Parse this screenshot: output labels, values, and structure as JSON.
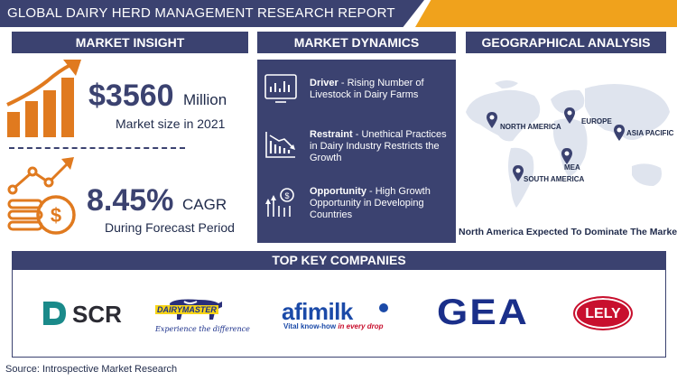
{
  "header": {
    "title": "GLOBAL DAIRY HERD MANAGEMENT RESEARCH REPORT"
  },
  "sections": {
    "insight_title": "MARKET INSIGHT",
    "dynamics_title": "MARKET DYNAMICS",
    "geo_title": "GEOGRAPHICAL ANALYSIS"
  },
  "insight": {
    "market_value": "$3560",
    "market_unit": "Million",
    "market_caption": "Market size in 2021",
    "cagr_value": "8.45%",
    "cagr_unit": "CAGR",
    "cagr_caption": "During Forecast Period"
  },
  "dynamics": [
    {
      "label": "Driver",
      "text": " - Rising Number of Livestock in Dairy Farms",
      "icon": "monitor-chart-icon"
    },
    {
      "label": "Restraint",
      "text": " - Unethical Practices in Dairy Industry Restricts the Growth",
      "icon": "declining-chart-icon"
    },
    {
      "label": "Opportunity",
      "text": " - High Growth Opportunity in Developing Countries",
      "icon": "growth-opportunity-icon"
    }
  ],
  "geo": {
    "regions": [
      "NORTH AMERICA",
      "EUROPE",
      "ASIA PACIFIC",
      "MEA",
      "SOUTH AMERICA"
    ],
    "caption": "North America Expected To Dominate The Market"
  },
  "companies": {
    "title": "TOP KEY COMPANIES",
    "scr": "SCR",
    "dairymaster": "DAIRYMASTER",
    "dairymaster_tagline": "Experience the difference",
    "afimilk": "afimilk",
    "afimilk_tagline_a": "Vital know-how ",
    "afimilk_tagline_b": "in every drop",
    "gea": "GEA",
    "lely": "LELY"
  },
  "source": "Source: Introspective Market Research",
  "colors": {
    "navy": "#3b4270",
    "orange": "#f0a21c",
    "icon_orange": "#e07a1f",
    "afimilk_blue": "#1b4aa8",
    "lely_red": "#c8102e",
    "gea_blue": "#1a2f8a",
    "scr_teal": "#1a8a8a"
  }
}
